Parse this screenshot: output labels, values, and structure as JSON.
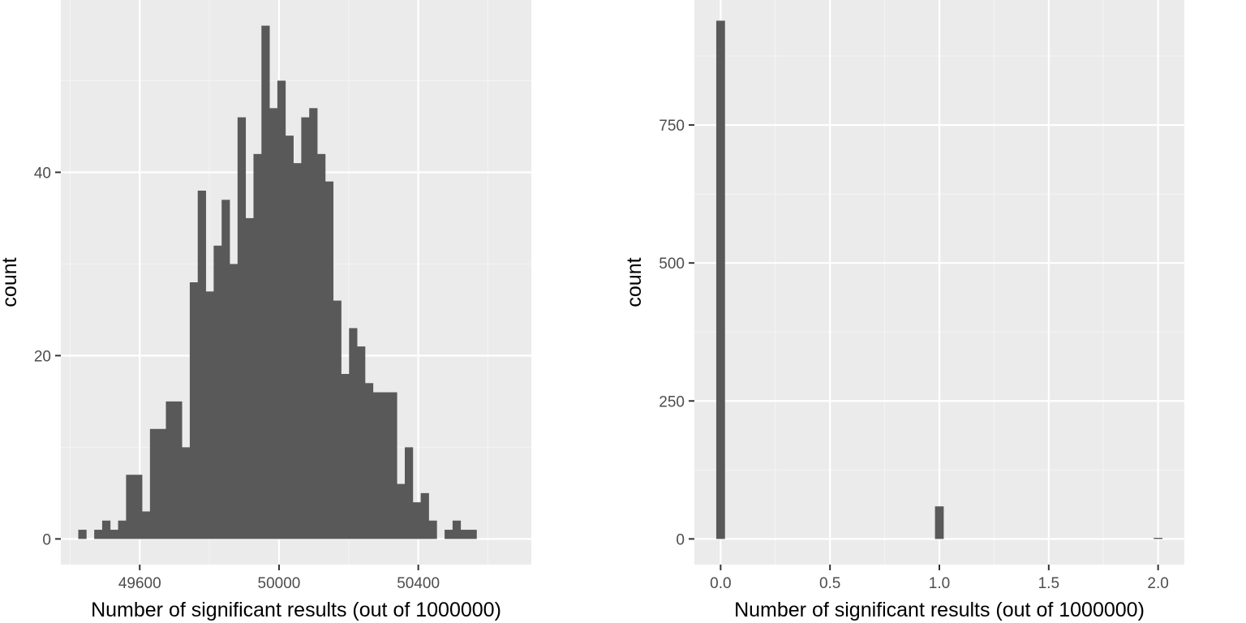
{
  "colors": {
    "panel_background": "#ebebeb",
    "major_grid": "#ffffff",
    "minor_grid": "#f4f4f4",
    "bar_fill": "#595959",
    "tick": "#333333"
  },
  "chart_data": [
    {
      "type": "bar",
      "subtype": "histogram",
      "xlabel": "Number of significant results (out of 1000000)",
      "ylabel": "count",
      "x_ticks": [
        49600,
        50000,
        50400
      ],
      "x_tick_labels": [
        "49600",
        "50000",
        "50400"
      ],
      "y_ticks": [
        0,
        20,
        40
      ],
      "y_tick_labels": [
        "0",
        "20",
        "40"
      ],
      "xlim": [
        49373.4,
        50724.6
      ],
      "ylim": [
        -2.8,
        58.8
      ],
      "grid": true,
      "legend": "none",
      "bins": {
        "start": 49423.5,
        "width": 22.87,
        "counts": [
          1,
          0,
          1,
          2,
          1,
          2,
          7,
          7,
          3,
          12,
          12,
          15,
          15,
          10,
          28,
          38,
          27,
          32,
          37,
          30,
          46,
          35,
          42,
          56,
          47,
          50,
          44,
          41,
          46,
          47,
          42,
          39,
          26,
          18,
          23,
          21,
          17,
          16,
          16,
          16,
          6,
          10,
          4,
          5,
          2,
          0,
          1,
          2,
          1,
          1
        ]
      }
    },
    {
      "type": "bar",
      "subtype": "histogram",
      "xlabel": "Number of significant results (out of 1000000)",
      "ylabel": "count",
      "x_ticks": [
        0,
        0.5,
        1,
        1.5,
        2
      ],
      "x_tick_labels": [
        "0.0",
        "0.5",
        "1.0",
        "1.5",
        "2.0"
      ],
      "y_ticks": [
        0,
        250,
        500,
        750
      ],
      "y_tick_labels": [
        "0",
        "250",
        "500",
        "750"
      ],
      "xlim": [
        -0.12,
        2.12
      ],
      "ylim": [
        -46.5,
        976.5
      ],
      "grid": true,
      "legend": "none",
      "bars": [
        {
          "x": 0,
          "count": 939
        },
        {
          "x": 1,
          "count": 59
        },
        {
          "x": 2,
          "count": 2
        }
      ],
      "bin_width": 0.04
    }
  ]
}
